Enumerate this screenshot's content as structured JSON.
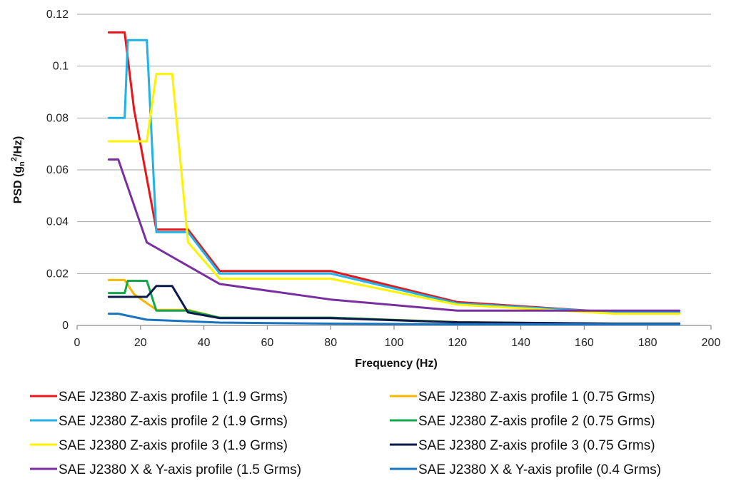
{
  "chart_data": {
    "type": "line",
    "title": "",
    "xlabel": "Frequency (Hz)",
    "ylabel": {
      "prefix": "PSD (g",
      "sub": "n",
      "sup": "2",
      "suffix": "/Hz)"
    },
    "xlim": [
      0,
      200
    ],
    "ylim": [
      0,
      0.12
    ],
    "x_ticks": [
      "0",
      "20",
      "40",
      "60",
      "80",
      "100",
      "120",
      "140",
      "160",
      "180",
      "200"
    ],
    "y_ticks": [
      "0",
      "0.02",
      "0.04",
      "0.06",
      "0.08",
      "0.1",
      "0.12"
    ],
    "grid": "horizontal",
    "legend_position": "bottom",
    "series": [
      {
        "name": "SAE J2380 Z-axis profile 1 (1.9 Grms)",
        "color": "#e8161b",
        "points": [
          [
            10,
            0.113
          ],
          [
            15,
            0.113
          ],
          [
            18,
            0.083
          ],
          [
            25,
            0.037
          ],
          [
            35,
            0.037
          ],
          [
            45,
            0.021
          ],
          [
            80,
            0.021
          ],
          [
            120,
            0.009
          ],
          [
            170,
            0.005
          ],
          [
            190,
            0.005
          ]
        ]
      },
      {
        "name": "SAE J2380 Z-axis profile 1 (0.75 Grms)",
        "color": "#f5b800",
        "points": [
          [
            10,
            0.0175
          ],
          [
            15,
            0.0175
          ],
          [
            18,
            0.012
          ],
          [
            25,
            0.006
          ],
          [
            35,
            0.006
          ],
          [
            45,
            0.003
          ],
          [
            80,
            0.003
          ],
          [
            120,
            0.0013
          ],
          [
            170,
            0.0006
          ],
          [
            190,
            0.0006
          ]
        ]
      },
      {
        "name": "SAE J2380 Z-axis profile 2 (1.9 Grms)",
        "color": "#1fb2e6",
        "points": [
          [
            10,
            0.08
          ],
          [
            15,
            0.08
          ],
          [
            16,
            0.11
          ],
          [
            22,
            0.11
          ],
          [
            25,
            0.036
          ],
          [
            35,
            0.036
          ],
          [
            45,
            0.02
          ],
          [
            80,
            0.02
          ],
          [
            120,
            0.0085
          ],
          [
            170,
            0.005
          ],
          [
            190,
            0.005
          ]
        ]
      },
      {
        "name": "SAE J2380 Z-axis profile 2 (0.75 Grms)",
        "color": "#10a84a",
        "points": [
          [
            10,
            0.0125
          ],
          [
            15,
            0.0125
          ],
          [
            16,
            0.0172
          ],
          [
            22,
            0.0172
          ],
          [
            25,
            0.0057
          ],
          [
            35,
            0.0057
          ],
          [
            45,
            0.003
          ],
          [
            80,
            0.003
          ],
          [
            120,
            0.0012
          ],
          [
            170,
            0.0006
          ],
          [
            190,
            0.0006
          ]
        ]
      },
      {
        "name": "SAE J2380 Z-axis profile 3 (1.9 Grms)",
        "color": "#fdf200",
        "points": [
          [
            10,
            0.071
          ],
          [
            22,
            0.071
          ],
          [
            25,
            0.097
          ],
          [
            30,
            0.097
          ],
          [
            35,
            0.032
          ],
          [
            45,
            0.018
          ],
          [
            80,
            0.018
          ],
          [
            120,
            0.008
          ],
          [
            170,
            0.0045
          ],
          [
            190,
            0.0045
          ]
        ]
      },
      {
        "name": "SAE J2380 Z-axis profile 3 (0.75 Grms)",
        "color": "#0a1a4d",
        "points": [
          [
            10,
            0.011
          ],
          [
            22,
            0.011
          ],
          [
            25,
            0.0152
          ],
          [
            30,
            0.0152
          ],
          [
            35,
            0.005
          ],
          [
            45,
            0.0028
          ],
          [
            80,
            0.0028
          ],
          [
            120,
            0.0012
          ],
          [
            170,
            0.0007
          ],
          [
            190,
            0.0007
          ]
        ]
      },
      {
        "name": "SAE J2380 X & Y-axis profile (1.5 Grms)",
        "color": "#7a2fa0",
        "points": [
          [
            10,
            0.064
          ],
          [
            13,
            0.064
          ],
          [
            22,
            0.032
          ],
          [
            45,
            0.016
          ],
          [
            80,
            0.01
          ],
          [
            120,
            0.0057
          ],
          [
            190,
            0.0057
          ]
        ]
      },
      {
        "name": "SAE J2380 X & Y-axis profile (0.4 Grms)",
        "color": "#1874c1",
        "points": [
          [
            10,
            0.0045
          ],
          [
            13,
            0.0045
          ],
          [
            22,
            0.0022
          ],
          [
            45,
            0.0011
          ],
          [
            80,
            0.0007
          ],
          [
            120,
            0.0004
          ],
          [
            190,
            0.0004
          ]
        ]
      }
    ]
  }
}
